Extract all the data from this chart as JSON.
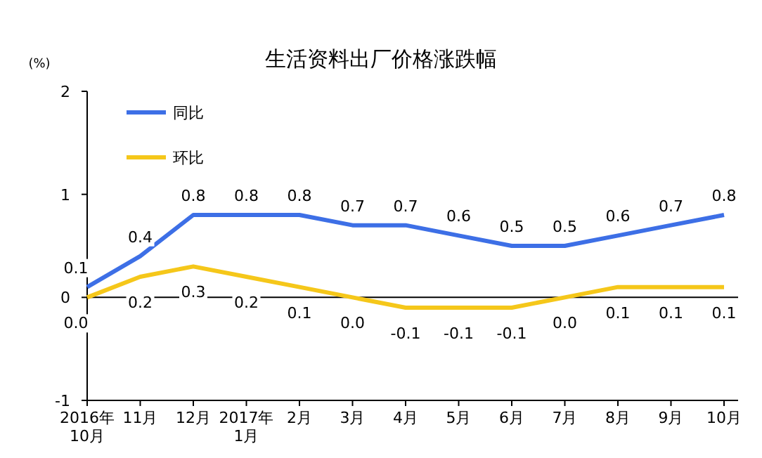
{
  "chart_data": {
    "type": "line",
    "title": "生活资料出厂价格涨跌幅",
    "ylabel": "(%)",
    "categories": [
      "2016年\n10月",
      "11月",
      "12月",
      "2017年\n1月",
      "2月",
      "3月",
      "4月",
      "5月",
      "6月",
      "7月",
      "8月",
      "9月",
      "10月"
    ],
    "series": [
      {
        "name": "同比",
        "color": "#3d6fe6",
        "values": [
          0.1,
          0.4,
          0.8,
          0.8,
          0.8,
          0.7,
          0.7,
          0.6,
          0.5,
          0.5,
          0.6,
          0.7,
          0.8
        ],
        "value_labels": [
          "0.1",
          "0.4",
          "0.8",
          "0.8",
          "0.8",
          "0.7",
          "0.7",
          "0.6",
          "0.5",
          "0.5",
          "0.6",
          "0.7",
          "0.8"
        ]
      },
      {
        "name": "环比",
        "color": "#f5c71a",
        "values": [
          0.0,
          0.2,
          0.3,
          0.2,
          0.1,
          0.0,
          -0.1,
          -0.1,
          -0.1,
          0.0,
          0.1,
          0.1,
          0.1
        ],
        "value_labels": [
          "0.0",
          "0.2",
          "0.3",
          "0.2",
          "0.1",
          "0.0",
          "-0.1",
          "-0.1",
          "-0.1",
          "0.0",
          "0.1",
          "0.1",
          "0.1"
        ]
      }
    ],
    "ylim": [
      -1,
      2
    ],
    "yticks": [
      -1,
      0,
      1,
      2
    ],
    "legend": "top left",
    "marker": "none",
    "line_style": "solid"
  }
}
